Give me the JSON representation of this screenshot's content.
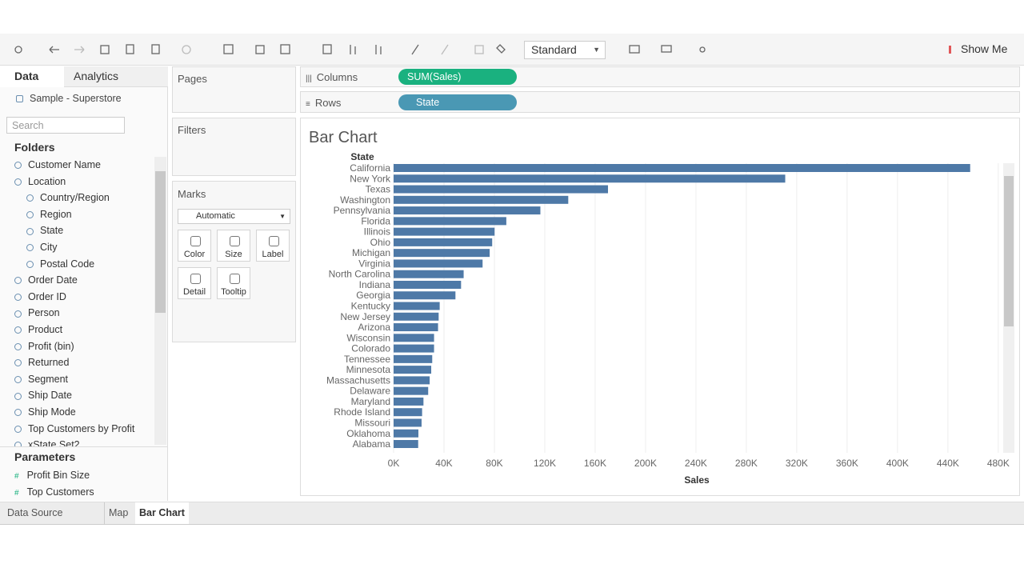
{
  "toolbar": {
    "view_size": "Standard",
    "show_me": "Show Me"
  },
  "data_pane": {
    "tabs": [
      "Data",
      "Analytics"
    ],
    "data_source": "Sample - Superstore",
    "search_placeholder": "Search",
    "folders_title": "Folders",
    "fields": [
      "Customer Name",
      {
        "label": "Location",
        "items": [
          "Country/Region",
          "Region",
          "State",
          "City",
          "Postal Code"
        ]
      },
      "Order Date",
      "Order ID",
      "Person",
      "Product",
      "Profit (bin)",
      "Returned",
      "Segment",
      "Ship Date",
      "Ship Mode",
      "Top Customers by Profit",
      "xState Set2"
    ],
    "parameters_title": "Parameters",
    "parameters": [
      "Profit Bin Size",
      "Top Customers"
    ]
  },
  "cards": {
    "pages": "Pages",
    "filters": "Filters",
    "marks": "Marks",
    "mark_type": "Automatic",
    "mark_buttons": [
      "Color",
      "Size",
      "Label",
      "Detail",
      "Tooltip"
    ]
  },
  "shelves": {
    "columns_label": "Columns",
    "columns_pill": "SUM(Sales)",
    "rows_label": "Rows",
    "rows_pill": "State"
  },
  "chart_data": {
    "type": "bar",
    "orientation": "horizontal",
    "title": "Bar Chart",
    "y_label": "State",
    "x_label": "Sales",
    "categories": [
      "California",
      "New York",
      "Texas",
      "Washington",
      "Pennsylvania",
      "Florida",
      "Illinois",
      "Ohio",
      "Michigan",
      "Virginia",
      "North Carolina",
      "Indiana",
      "Georgia",
      "Kentucky",
      "New Jersey",
      "Arizona",
      "Wisconsin",
      "Colorado",
      "Tennessee",
      "Minnesota",
      "Massachusetts",
      "Delaware",
      "Maryland",
      "Rhode Island",
      "Missouri",
      "Oklahoma",
      "Alabama"
    ],
    "values": [
      457688,
      310876,
      170188,
      138641,
      116512,
      89474,
      80166,
      78258,
      76270,
      70637,
      55603,
      53555,
      49096,
      36592,
      35764,
      35282,
      32115,
      32108,
      30662,
      29863,
      28634,
      27451,
      23706,
      22628,
      22205,
      19683,
      19511
    ],
    "color": "#4e79a7",
    "xlim": [
      0,
      482000
    ],
    "xticks": [
      {
        "value": 0,
        "label": "0K"
      },
      {
        "value": 40000,
        "label": "40K"
      },
      {
        "value": 80000,
        "label": "80K"
      },
      {
        "value": 120000,
        "label": "120K"
      },
      {
        "value": 160000,
        "label": "160K"
      },
      {
        "value": 200000,
        "label": "200K"
      },
      {
        "value": 240000,
        "label": "240K"
      },
      {
        "value": 280000,
        "label": "280K"
      },
      {
        "value": 320000,
        "label": "320K"
      },
      {
        "value": 360000,
        "label": "360K"
      },
      {
        "value": 400000,
        "label": "400K"
      },
      {
        "value": 440000,
        "label": "440K"
      },
      {
        "value": 480000,
        "label": "480K"
      }
    ],
    "grid": true
  },
  "sheet_tabs": [
    "Data Source",
    "Map",
    "Bar Chart"
  ]
}
